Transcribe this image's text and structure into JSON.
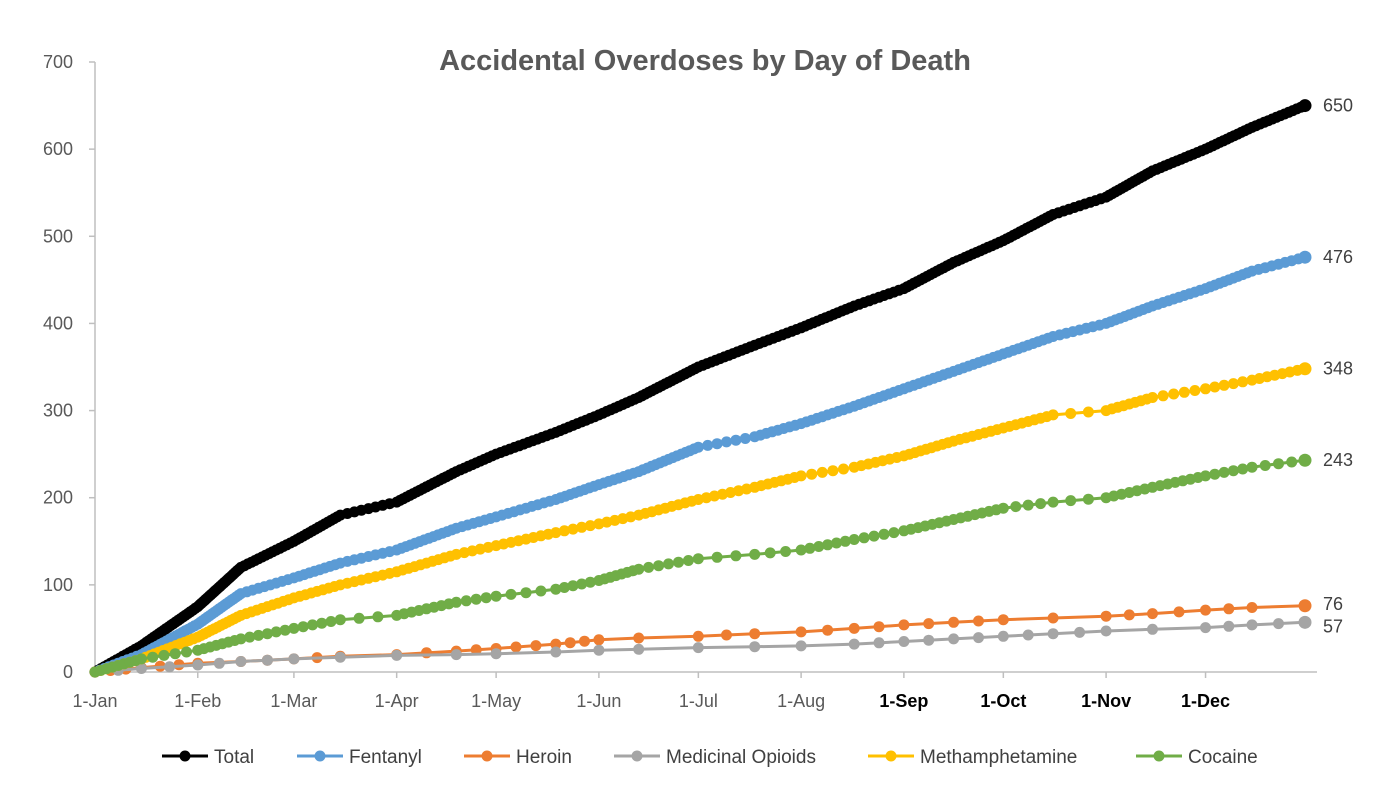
{
  "chart_data": {
    "type": "line",
    "title": "Accidental Overdoses by Day of Death",
    "xlabel": "",
    "ylabel": "",
    "ylim": [
      0,
      700
    ],
    "yticks": [
      "0",
      "100",
      "200",
      "300",
      "400",
      "500",
      "600",
      "700"
    ],
    "xlim_days": [
      1,
      366
    ],
    "xticks": [
      {
        "label": "1-Jan",
        "day": 1,
        "bold": false
      },
      {
        "label": "1-Feb",
        "day": 32,
        "bold": false
      },
      {
        "label": "1-Mar",
        "day": 61,
        "bold": false
      },
      {
        "label": "1-Apr",
        "day": 92,
        "bold": false
      },
      {
        "label": "1-May",
        "day": 122,
        "bold": false
      },
      {
        "label": "1-Jun",
        "day": 153,
        "bold": false
      },
      {
        "label": "1-Jul",
        "day": 183,
        "bold": false
      },
      {
        "label": "1-Aug",
        "day": 214,
        "bold": false
      },
      {
        "label": "1-Sep",
        "day": 245,
        "bold": true
      },
      {
        "label": "1-Oct",
        "day": 275,
        "bold": true
      },
      {
        "label": "1-Nov",
        "day": 306,
        "bold": true
      },
      {
        "label": "1-Dec",
        "day": 336,
        "bold": true
      }
    ],
    "grid": false,
    "legend_position": "bottom",
    "series": [
      {
        "name": "Total",
        "color": "#000000",
        "end_label": "650",
        "x": [
          1,
          15,
          32,
          45,
          61,
          75,
          92,
          110,
          122,
          140,
          153,
          165,
          183,
          200,
          214,
          230,
          245,
          260,
          275,
          290,
          306,
          320,
          336,
          350,
          366
        ],
        "y": [
          0,
          30,
          75,
          120,
          150,
          180,
          195,
          230,
          250,
          275,
          295,
          315,
          350,
          375,
          395,
          420,
          440,
          470,
          495,
          525,
          545,
          575,
          600,
          625,
          650
        ]
      },
      {
        "name": "Fentanyl",
        "color": "#5B9BD5",
        "end_label": "476",
        "x": [
          1,
          15,
          32,
          45,
          61,
          75,
          92,
          110,
          122,
          140,
          153,
          165,
          183,
          200,
          214,
          230,
          245,
          260,
          275,
          290,
          306,
          320,
          336,
          350,
          366
        ],
        "y": [
          0,
          20,
          55,
          90,
          108,
          125,
          140,
          165,
          178,
          198,
          215,
          230,
          258,
          270,
          285,
          305,
          325,
          345,
          365,
          385,
          400,
          420,
          440,
          460,
          476
        ]
      },
      {
        "name": "Heroin",
        "color": "#ED7D31",
        "end_label": "76",
        "x": [
          1,
          15,
          32,
          45,
          61,
          75,
          92,
          110,
          122,
          140,
          153,
          165,
          183,
          200,
          214,
          230,
          245,
          260,
          275,
          290,
          306,
          320,
          336,
          350,
          366
        ],
        "y": [
          0,
          5,
          10,
          12,
          15,
          18,
          20,
          24,
          27,
          32,
          37,
          39,
          41,
          44,
          46,
          50,
          54,
          57,
          60,
          62,
          64,
          67,
          71,
          74,
          76
        ]
      },
      {
        "name": "Medicinal Opioids",
        "color": "#A5A5A5",
        "end_label": "57",
        "x": [
          1,
          15,
          32,
          45,
          61,
          75,
          92,
          110,
          122,
          140,
          153,
          165,
          183,
          200,
          214,
          230,
          245,
          260,
          275,
          290,
          306,
          320,
          336,
          350,
          366
        ],
        "y": [
          0,
          4,
          8,
          12,
          15,
          17,
          19,
          20,
          21,
          23,
          25,
          26,
          28,
          29,
          30,
          32,
          35,
          38,
          41,
          44,
          47,
          49,
          51,
          54,
          57
        ]
      },
      {
        "name": "Methamphetamine",
        "color": "#FFC000",
        "end_label": "348",
        "x": [
          1,
          15,
          32,
          45,
          61,
          75,
          92,
          110,
          122,
          140,
          153,
          165,
          183,
          200,
          214,
          230,
          245,
          260,
          275,
          290,
          306,
          320,
          336,
          350,
          366
        ],
        "y": [
          0,
          15,
          40,
          65,
          85,
          100,
          115,
          135,
          145,
          160,
          170,
          180,
          198,
          212,
          225,
          235,
          248,
          265,
          280,
          295,
          300,
          315,
          325,
          335,
          348
        ]
      },
      {
        "name": "Cocaine",
        "color": "#70AD47",
        "end_label": "243",
        "x": [
          1,
          15,
          32,
          45,
          61,
          75,
          92,
          110,
          122,
          140,
          153,
          165,
          183,
          200,
          214,
          230,
          245,
          260,
          275,
          290,
          306,
          320,
          336,
          350,
          366
        ],
        "y": [
          0,
          15,
          25,
          38,
          50,
          60,
          65,
          80,
          87,
          95,
          105,
          118,
          130,
          135,
          140,
          152,
          162,
          175,
          188,
          195,
          200,
          212,
          225,
          235,
          243
        ]
      }
    ]
  }
}
